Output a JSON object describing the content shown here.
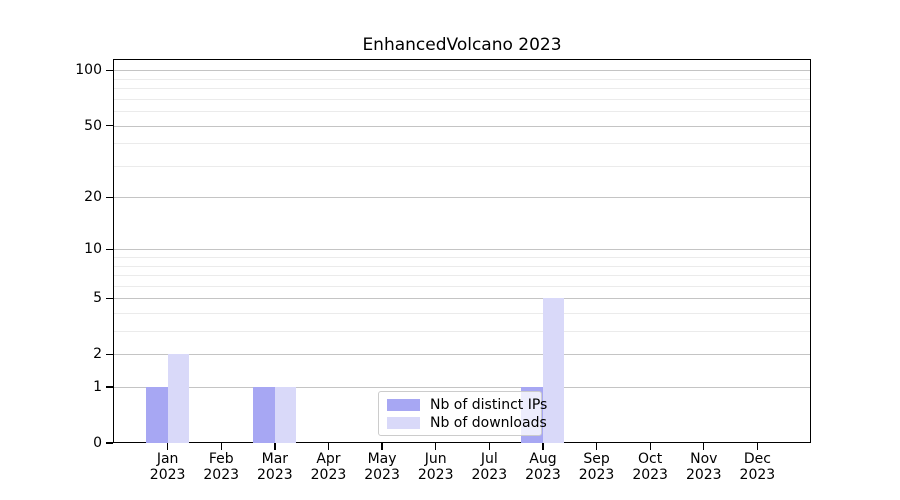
{
  "chart_data": {
    "type": "bar",
    "title": "EnhancedVolcano 2023",
    "x": {
      "months": [
        "Jan",
        "Feb",
        "Mar",
        "Apr",
        "May",
        "Jun",
        "Jul",
        "Aug",
        "Sep",
        "Oct",
        "Nov",
        "Dec"
      ],
      "year": "2023"
    },
    "series": [
      {
        "name": "Nb of distinct IPs",
        "color": "#a7a7f3",
        "values": [
          1,
          0,
          1,
          0,
          0,
          0,
          0,
          1,
          0,
          0,
          0,
          0
        ]
      },
      {
        "name": "Nb of downloads",
        "color": "#d9d9f9",
        "values": [
          2,
          0,
          1,
          0,
          0,
          0,
          0,
          5,
          0,
          0,
          0,
          0
        ]
      }
    ],
    "y_axis": {
      "scale": "log1p",
      "ticks": [
        0,
        1,
        2,
        5,
        10,
        20,
        50,
        100
      ],
      "minor_gridlines": [
        3,
        4,
        6,
        7,
        8,
        9,
        30,
        40,
        60,
        70,
        80,
        90
      ],
      "max": 114,
      "ylim": [
        0,
        114
      ]
    },
    "legend": {
      "labels": [
        "Nb of distinct IPs",
        "Nb of downloads"
      ],
      "position": "inside-bottom-center"
    },
    "grid": {
      "major_color": "#c4c4c4",
      "minor_color": "#ebebeb",
      "enabled": true
    },
    "frame_color": "#000000"
  }
}
